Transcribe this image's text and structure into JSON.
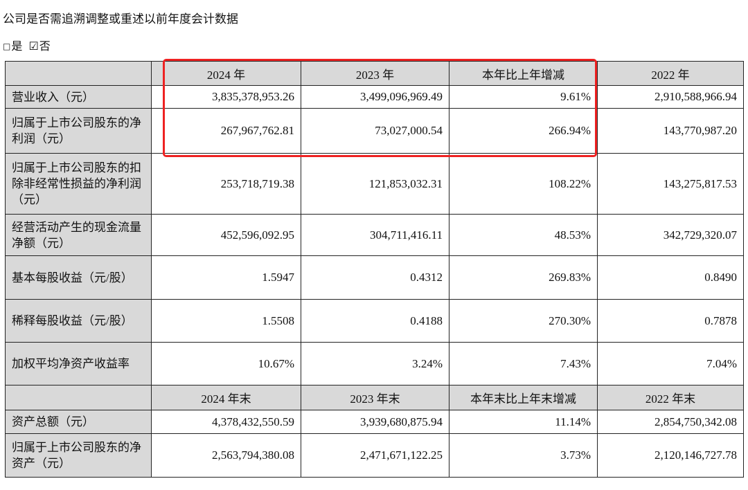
{
  "heading": "公司是否需追溯调整或重述以前年度会计数据",
  "choice": {
    "yes_box": "□",
    "yes_label": "是",
    "no_box": "☑",
    "no_label": "否"
  },
  "table": {
    "header_top": [
      "",
      "2024 年",
      "2023 年",
      "本年比上年增减",
      "2022 年"
    ],
    "rows_top": [
      {
        "label": "营业收入（元）",
        "v2024": "3,835,378,953.26",
        "v2023": "3,499,096,969.49",
        "change": "9.61%",
        "v2022": "2,910,588,966.94"
      },
      {
        "label": "归属于上市公司股东的净利润（元）",
        "v2024": "267,967,762.81",
        "v2023": "73,027,000.54",
        "change": "266.94%",
        "v2022": "143,770,987.20"
      },
      {
        "label": "归属于上市公司股东的扣除非经常性损益的净利润（元）",
        "v2024": "253,718,719.38",
        "v2023": "121,853,032.31",
        "change": "108.22%",
        "v2022": "143,275,817.53"
      },
      {
        "label": "经营活动产生的现金流量净额（元）",
        "v2024": "452,596,092.95",
        "v2023": "304,711,416.11",
        "change": "48.53%",
        "v2022": "342,729,320.07"
      },
      {
        "label": "基本每股收益（元/股）",
        "v2024": "1.5947",
        "v2023": "0.4312",
        "change": "269.83%",
        "v2022": "0.8490"
      },
      {
        "label": "稀释每股收益（元/股）",
        "v2024": "1.5508",
        "v2023": "0.4188",
        "change": "270.30%",
        "v2022": "0.7878"
      },
      {
        "label": "加权平均净资产收益率",
        "v2024": "10.67%",
        "v2023": "3.24%",
        "change": "7.43%",
        "v2022": "7.04%"
      }
    ],
    "header_bottom": [
      "",
      "2024 年末",
      "2023 年末",
      "本年末比上年末增减",
      "2022 年末"
    ],
    "rows_bottom": [
      {
        "label": "资产总额（元）",
        "v2024": "4,378,432,550.59",
        "v2023": "3,939,680,875.94",
        "change": "11.14%",
        "v2022": "2,854,750,342.08"
      },
      {
        "label": "归属于上市公司股东的净资产（元）",
        "v2024": "2,563,794,380.08",
        "v2023": "2,471,671,122.25",
        "change": "3.73%",
        "v2022": "2,120,146,727.78"
      }
    ]
  }
}
